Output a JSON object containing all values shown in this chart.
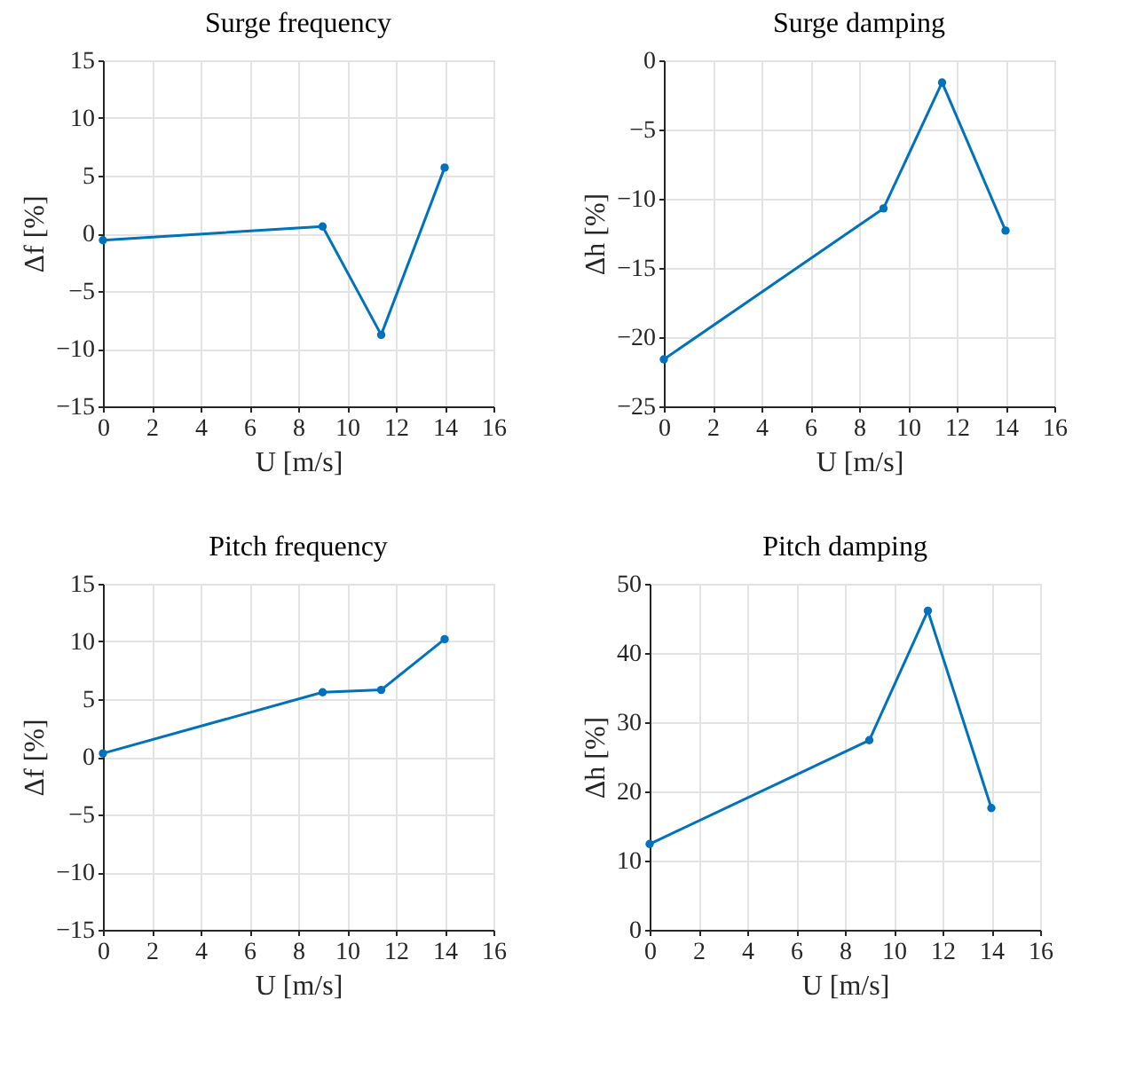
{
  "chart_data": [
    {
      "type": "line",
      "title": "Surge frequency",
      "xlabel": "U [m/s]",
      "ylabel": "Δf [%]",
      "x": [
        0,
        9,
        11.4,
        14
      ],
      "series": [
        {
          "color": "#0072bd",
          "values": [
            -0.6,
            0.6,
            -8.8,
            5.7
          ]
        }
      ],
      "xlim": [
        0,
        16
      ],
      "xticks": [
        0,
        2,
        4,
        6,
        8,
        10,
        12,
        14,
        16
      ],
      "ylim": [
        -15,
        15
      ],
      "yticks": [
        -15,
        -10,
        -5,
        0,
        5,
        10,
        15
      ],
      "grid": true,
      "marker": "circle"
    },
    {
      "type": "line",
      "title": "Surge damping",
      "xlabel": "U [m/s]",
      "ylabel": "Δh [%]",
      "x": [
        0,
        9,
        11.4,
        14
      ],
      "series": [
        {
          "color": "#0072bd",
          "values": [
            -21.6,
            -10.7,
            -1.6,
            -12.3
          ]
        }
      ],
      "xlim": [
        0,
        16
      ],
      "xticks": [
        0,
        2,
        4,
        6,
        8,
        10,
        12,
        14,
        16
      ],
      "ylim": [
        -25,
        0
      ],
      "yticks": [
        -25,
        -20,
        -15,
        -10,
        -5,
        0
      ],
      "grid": true,
      "marker": "circle"
    },
    {
      "type": "line",
      "title": "Pitch frequency",
      "xlabel": "U [m/s]",
      "ylabel": "Δf [%]",
      "x": [
        0,
        9,
        11.4,
        14
      ],
      "series": [
        {
          "color": "#0072bd",
          "values": [
            0.3,
            5.6,
            5.8,
            10.2
          ]
        }
      ],
      "xlim": [
        0,
        16
      ],
      "xticks": [
        0,
        2,
        4,
        6,
        8,
        10,
        12,
        14,
        16
      ],
      "ylim": [
        -15,
        15
      ],
      "yticks": [
        -15,
        -10,
        -5,
        0,
        5,
        10,
        15
      ],
      "grid": true,
      "marker": "circle"
    },
    {
      "type": "line",
      "title": "Pitch damping",
      "xlabel": "U [m/s]",
      "ylabel": "Δh [%]",
      "x": [
        0,
        9,
        11.4,
        14
      ],
      "series": [
        {
          "color": "#0072bd",
          "values": [
            12.4,
            27.4,
            46.1,
            17.6
          ]
        }
      ],
      "xlim": [
        0,
        16
      ],
      "xticks": [
        0,
        2,
        4,
        6,
        8,
        10,
        12,
        14,
        16
      ],
      "ylim": [
        0,
        50
      ],
      "yticks": [
        0,
        10,
        20,
        30,
        40,
        50
      ],
      "grid": true,
      "marker": "circle"
    }
  ]
}
